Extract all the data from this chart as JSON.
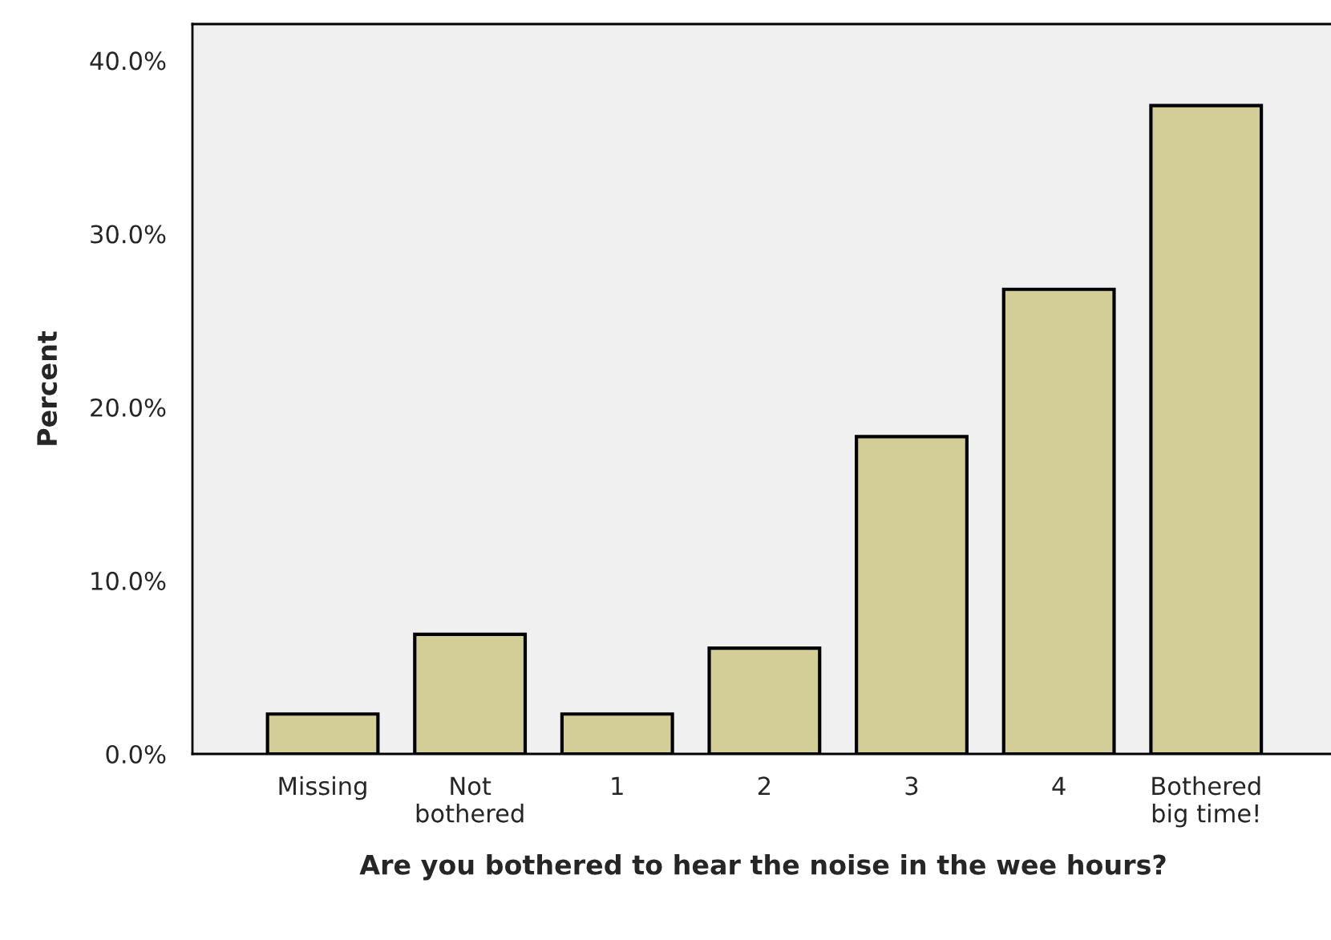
{
  "chart_data": {
    "type": "bar",
    "xlabel": "Are you bothered to hear the noise in the wee hours?",
    "ylabel": "Percent",
    "categories": [
      "Missing",
      "Not\nbothered",
      "1",
      "2",
      "3",
      "4",
      "Bothered\nbig time!"
    ],
    "values": [
      2.3,
      6.9,
      2.3,
      6.1,
      18.3,
      26.8,
      37.4
    ],
    "color": "#d3ce97",
    "ylim": [
      0,
      42.1
    ],
    "yticks": [
      {
        "value": 0,
        "label": "0.0%"
      },
      {
        "value": 10,
        "label": "10.0%"
      },
      {
        "value": 20,
        "label": "20.0%"
      },
      {
        "value": 30,
        "label": "30.0%"
      },
      {
        "value": 40,
        "label": "40.0%"
      }
    ],
    "grid": false
  }
}
